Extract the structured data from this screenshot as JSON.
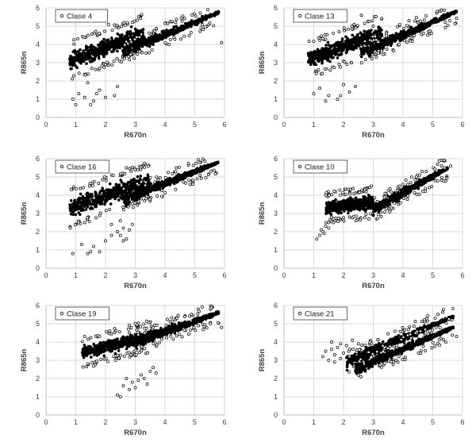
{
  "chart_data": [
    {
      "type": "scatter",
      "series": [
        {
          "name": "Clase 4",
          "cloud": [
            {
              "x": [
                0.8,
                3.3
              ],
              "yint": [
                2.3,
                3.9
              ],
              "slope": 0.6
            },
            {
              "x": [
                2.6,
                5.8
              ],
              "band": [
                [
                  2.6,
                  3.6
                ],
                [
                  5.8,
                  5.75
                ]
              ]
            }
          ],
          "outliers": [
            [
              0.9,
              1.0
            ],
            [
              1.0,
              0.7
            ],
            [
              1.3,
              1.1
            ],
            [
              1.5,
              0.7
            ],
            [
              1.7,
              1.3
            ],
            [
              1.8,
              1.5
            ],
            [
              2.0,
              1.1
            ],
            [
              2.3,
              1.2
            ],
            [
              2.4,
              1.7
            ],
            [
              1.4,
              1.9
            ],
            [
              2.0,
              5.4
            ],
            [
              2.1,
              5.1
            ],
            [
              5.9,
              4.1
            ],
            [
              1.1,
              1.3
            ],
            [
              1.6,
              0.9
            ]
          ]
        }
      ],
      "xlabel": "R670n",
      "ylabel": "R865n",
      "xlim": [
        0,
        6
      ],
      "ylim": [
        0,
        6
      ],
      "xticks": [
        "0",
        "1",
        "2",
        "3",
        "4",
        "5",
        "6"
      ],
      "yticks": [
        "0",
        "1",
        "2",
        "3",
        "4",
        "5",
        "6"
      ],
      "grid": true,
      "legend_position": "top-left"
    },
    {
      "type": "scatter",
      "series": [
        {
          "name": "Clase 13",
          "cloud": [
            {
              "x": [
                0.8,
                3.3
              ],
              "yint": [
                2.4,
                3.9
              ],
              "slope": 0.6
            },
            {
              "x": [
                2.6,
                5.8
              ],
              "band": [
                [
                  2.7,
                  3.6
                ],
                [
                  5.8,
                  5.8
                ]
              ]
            }
          ],
          "outliers": [
            [
              1.0,
              1.3
            ],
            [
              1.4,
              0.9
            ],
            [
              1.5,
              1.2
            ],
            [
              1.8,
              1.0
            ],
            [
              1.9,
              1.2
            ],
            [
              2.2,
              1.4
            ],
            [
              2.4,
              1.7
            ],
            [
              2.6,
              5.6
            ],
            [
              3.0,
              5.0
            ],
            [
              4.2,
              5.3
            ],
            [
              4.5,
              5.2
            ],
            [
              1.2,
              1.6
            ],
            [
              2.0,
              1.8
            ]
          ]
        }
      ],
      "xlabel": "R670n",
      "ylabel": "R865n",
      "xlim": [
        0,
        6
      ],
      "ylim": [
        0,
        6
      ],
      "xticks": [
        "0",
        "1",
        "2",
        "3",
        "4",
        "5",
        "6"
      ],
      "yticks": [
        "0",
        "1",
        "2",
        "3",
        "4",
        "5",
        "6"
      ],
      "grid": true,
      "legend_position": "top-left"
    },
    {
      "type": "scatter",
      "series": [
        {
          "name": "Clase 16",
          "cloud": [
            {
              "x": [
                0.8,
                3.5
              ],
              "yint": [
                2.5,
                4.1
              ],
              "slope": 0.55
            },
            {
              "x": [
                2.6,
                5.8
              ],
              "band": [
                [
                  2.7,
                  3.8
                ],
                [
                  5.8,
                  5.8
                ]
              ]
            }
          ],
          "outliers": [
            [
              0.9,
              0.8
            ],
            [
              1.2,
              1.3
            ],
            [
              1.4,
              0.8
            ],
            [
              1.5,
              0.9
            ],
            [
              1.6,
              1.2
            ],
            [
              1.8,
              0.9
            ],
            [
              2.0,
              1.5
            ],
            [
              2.2,
              2.4
            ],
            [
              2.4,
              2.0
            ],
            [
              2.5,
              1.8
            ],
            [
              2.5,
              2.6
            ],
            [
              2.6,
              1.5
            ],
            [
              2.6,
              2.2
            ],
            [
              2.7,
              1.6
            ],
            [
              2.8,
              2.1
            ],
            [
              2.9,
              2.4
            ],
            [
              2.2,
              1.8
            ],
            [
              2.7,
              5.5
            ],
            [
              1.3,
              2.5
            ]
          ]
        }
      ],
      "xlabel": "R670n",
      "ylabel": "R865n",
      "xlim": [
        0,
        6
      ],
      "ylim": [
        0,
        6
      ],
      "xticks": [
        "0",
        "1",
        "2",
        "3",
        "4",
        "5",
        "6"
      ],
      "yticks": [
        "0",
        "1",
        "2",
        "3",
        "4",
        "5",
        "6"
      ],
      "grid": true,
      "legend_position": "top-left"
    },
    {
      "type": "scatter",
      "series": [
        {
          "name": "Clase 10",
          "cloud": [
            {
              "x": [
                1.4,
                3.0
              ],
              "yint": [
                2.7,
                3.9
              ],
              "slope": 0.2
            },
            {
              "x": [
                3.0,
                5.5
              ],
              "band": [
                [
                  3.3,
                  3.5
                ],
                [
                  5.4,
                  5.4
                ]
              ]
            }
          ],
          "outliers": [
            [
              1.1,
              1.6
            ],
            [
              1.2,
              1.8
            ],
            [
              1.3,
              2.0
            ],
            [
              1.4,
              2.3
            ],
            [
              1.5,
              2.5
            ],
            [
              1.35,
              1.9
            ],
            [
              1.6,
              2.8
            ],
            [
              1.5,
              2.2
            ],
            [
              1.25,
              2.1
            ],
            [
              5.6,
              5.6
            ],
            [
              5.4,
              5.5
            ]
          ]
        }
      ],
      "xlabel": "R670n",
      "ylabel": "R865n",
      "xlim": [
        0,
        6
      ],
      "ylim": [
        0,
        6
      ],
      "xticks": [
        "0",
        "1",
        "2",
        "3",
        "4",
        "5",
        "6"
      ],
      "yticks": [
        "0",
        "1",
        "2",
        "3",
        "4",
        "5",
        "6"
      ],
      "grid": true,
      "legend_position": "top-left"
    },
    {
      "type": "scatter",
      "series": [
        {
          "name": "Clase 19",
          "cloud": [
            {
              "x": [
                1.2,
                3.6
              ],
              "yint": [
                2.8,
                4.0
              ],
              "slope": 0.4
            },
            {
              "x": [
                3.0,
                5.8
              ],
              "band": [
                [
                  3.0,
                  4.0
                ],
                [
                  5.8,
                  5.6
                ]
              ]
            }
          ],
          "outliers": [
            [
              2.4,
              1.1
            ],
            [
              2.5,
              1.0
            ],
            [
              2.6,
              1.6
            ],
            [
              2.7,
              2.0
            ],
            [
              2.8,
              1.4
            ],
            [
              2.9,
              1.8
            ],
            [
              3.0,
              1.5
            ],
            [
              3.1,
              1.9
            ],
            [
              3.2,
              2.2
            ],
            [
              3.3,
              2.0
            ],
            [
              3.4,
              1.7
            ],
            [
              3.5,
              2.4
            ],
            [
              3.6,
              2.6
            ],
            [
              3.7,
              2.3
            ],
            [
              3.1,
              4.4
            ],
            [
              3.6,
              4.8
            ],
            [
              5.9,
              4.8
            ],
            [
              2.8,
              4.5
            ],
            [
              3.0,
              5.0
            ]
          ]
        }
      ],
      "xlabel": "R670n",
      "ylabel": "R865n",
      "xlim": [
        0,
        6
      ],
      "ylim": [
        0,
        6
      ],
      "xticks": [
        "0",
        "1",
        "2",
        "3",
        "4",
        "5",
        "6"
      ],
      "yticks": [
        "0",
        "1",
        "2",
        "3",
        "4",
        "5",
        "6"
      ],
      "grid": true,
      "legend_position": "top-left"
    },
    {
      "type": "scatter",
      "series": [
        {
          "name": "Clase 21",
          "cloud": [
            {
              "x": [
                2.1,
                5.7
              ],
              "band": [
                [
                  2.1,
                  2.9
                ],
                [
                  5.7,
                  5.4
                ]
              ]
            },
            {
              "x": [
                2.4,
                5.7
              ],
              "band": [
                [
                  2.4,
                  2.5
                ],
                [
                  5.7,
                  4.8
                ]
              ]
            }
          ],
          "outliers": [
            [
              1.3,
              3.2
            ],
            [
              1.4,
              3.5
            ],
            [
              1.5,
              3.0
            ],
            [
              1.6,
              3.6
            ],
            [
              1.7,
              3.3
            ],
            [
              1.8,
              3.7
            ],
            [
              1.9,
              3.1
            ],
            [
              2.0,
              3.4
            ],
            [
              2.1,
              3.8
            ],
            [
              2.2,
              3.2
            ],
            [
              1.6,
              4.0
            ],
            [
              1.9,
              3.9
            ],
            [
              2.3,
              4.1
            ],
            [
              1.7,
              2.9
            ],
            [
              2.5,
              3.9
            ],
            [
              5.8,
              4.3
            ]
          ]
        }
      ],
      "xlabel": "R670n",
      "ylabel": "R865n",
      "xlim": [
        0,
        6
      ],
      "ylim": [
        0,
        6
      ],
      "xticks": [
        "0",
        "1",
        "2",
        "3",
        "4",
        "5",
        "6"
      ],
      "yticks": [
        "0",
        "1",
        "2",
        "3",
        "4",
        "5",
        "6"
      ],
      "grid": true,
      "legend_position": "top-left"
    }
  ]
}
